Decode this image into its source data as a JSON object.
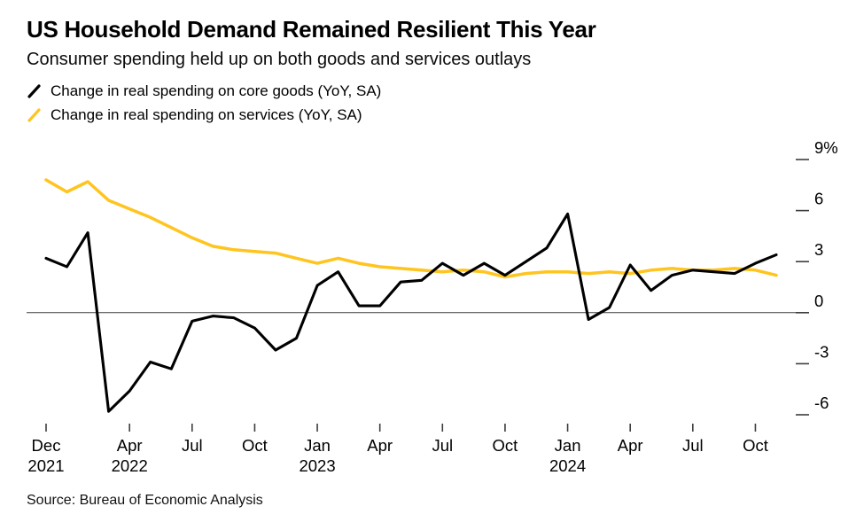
{
  "header": {
    "title": "US Household Demand Remained Resilient This Year",
    "subtitle": "Consumer spending held up on both goods and services outlays"
  },
  "legend": [
    {
      "label": "Change in real spending on core goods (YoY, SA)",
      "color": "#000000"
    },
    {
      "label": "Change in real spending on services (YoY, SA)",
      "color": "#ffc41e"
    }
  ],
  "footer": {
    "source": "Source: Bureau of Economic Analysis"
  },
  "chart_data": {
    "type": "line",
    "title": "US Household Demand Remained Resilient This Year",
    "subtitle": "Consumer spending held up on both goods and services outlays",
    "ylim": [
      -6,
      9
    ],
    "grid": "zero-line-only",
    "legend_position": "top-left",
    "axis_color": "#3d3d3d",
    "tick_color": "#3d3d3d",
    "background": "#ffffff",
    "x_months": [
      "Dec 2021",
      "Jan 2022",
      "Feb 2022",
      "Mar 2022",
      "Apr 2022",
      "May 2022",
      "Jun 2022",
      "Jul 2022",
      "Aug 2022",
      "Sep 2022",
      "Oct 2022",
      "Nov 2022",
      "Dec 2022",
      "Jan 2023",
      "Feb 2023",
      "Mar 2023",
      "Apr 2023",
      "May 2023",
      "Jun 2023",
      "Jul 2023",
      "Aug 2023",
      "Sep 2023",
      "Oct 2023",
      "Nov 2023",
      "Dec 2023",
      "Jan 2024",
      "Feb 2024",
      "Mar 2024",
      "Apr 2024",
      "May 2024",
      "Jun 2024",
      "Jul 2024",
      "Aug 2024",
      "Sep 2024",
      "Oct 2024",
      "Nov 2024"
    ],
    "series": [
      {
        "name": "Change in real spending on core goods (YoY, SA)",
        "color": "#000000",
        "values": [
          3.2,
          2.7,
          4.7,
          -5.8,
          -4.6,
          -2.9,
          -3.3,
          -0.5,
          -0.2,
          -0.3,
          -0.9,
          -2.2,
          -1.5,
          1.6,
          2.4,
          0.4,
          0.4,
          1.8,
          1.9,
          2.9,
          2.2,
          2.9,
          2.2,
          3.0,
          3.8,
          5.8,
          -0.4,
          0.3,
          2.8,
          1.3,
          2.2,
          2.5,
          2.4,
          2.3,
          2.9,
          3.4
        ]
      },
      {
        "name": "Change in real spending on services (YoY, SA)",
        "color": "#ffc41e",
        "values": [
          7.8,
          7.1,
          7.7,
          6.6,
          6.1,
          5.6,
          5.0,
          4.4,
          3.9,
          3.7,
          3.6,
          3.5,
          3.2,
          2.9,
          3.2,
          2.9,
          2.7,
          2.6,
          2.5,
          2.4,
          2.5,
          2.4,
          2.1,
          2.3,
          2.4,
          2.4,
          2.3,
          2.4,
          2.3,
          2.5,
          2.6,
          2.5,
          2.5,
          2.6,
          2.5,
          2.2
        ]
      }
    ],
    "yticks": [
      {
        "value": 9,
        "label": "9%"
      },
      {
        "value": 6,
        "label": "6"
      },
      {
        "value": 3,
        "label": "3"
      },
      {
        "value": 0,
        "label": "0"
      },
      {
        "value": -3,
        "label": "-3"
      },
      {
        "value": -6,
        "label": "-6"
      }
    ],
    "xticks": [
      {
        "index": 0,
        "month": "Dec",
        "year": "2021"
      },
      {
        "index": 4,
        "month": "Apr",
        "year": "2022"
      },
      {
        "index": 7,
        "month": "Jul",
        "year": ""
      },
      {
        "index": 10,
        "month": "Oct",
        "year": ""
      },
      {
        "index": 13,
        "month": "Jan",
        "year": "2023"
      },
      {
        "index": 16,
        "month": "Apr",
        "year": ""
      },
      {
        "index": 19,
        "month": "Jul",
        "year": ""
      },
      {
        "index": 22,
        "month": "Oct",
        "year": ""
      },
      {
        "index": 25,
        "month": "Jan",
        "year": "2024"
      },
      {
        "index": 28,
        "month": "Apr",
        "year": ""
      },
      {
        "index": 31,
        "month": "Jul",
        "year": ""
      },
      {
        "index": 34,
        "month": "Oct",
        "year": ""
      }
    ]
  }
}
